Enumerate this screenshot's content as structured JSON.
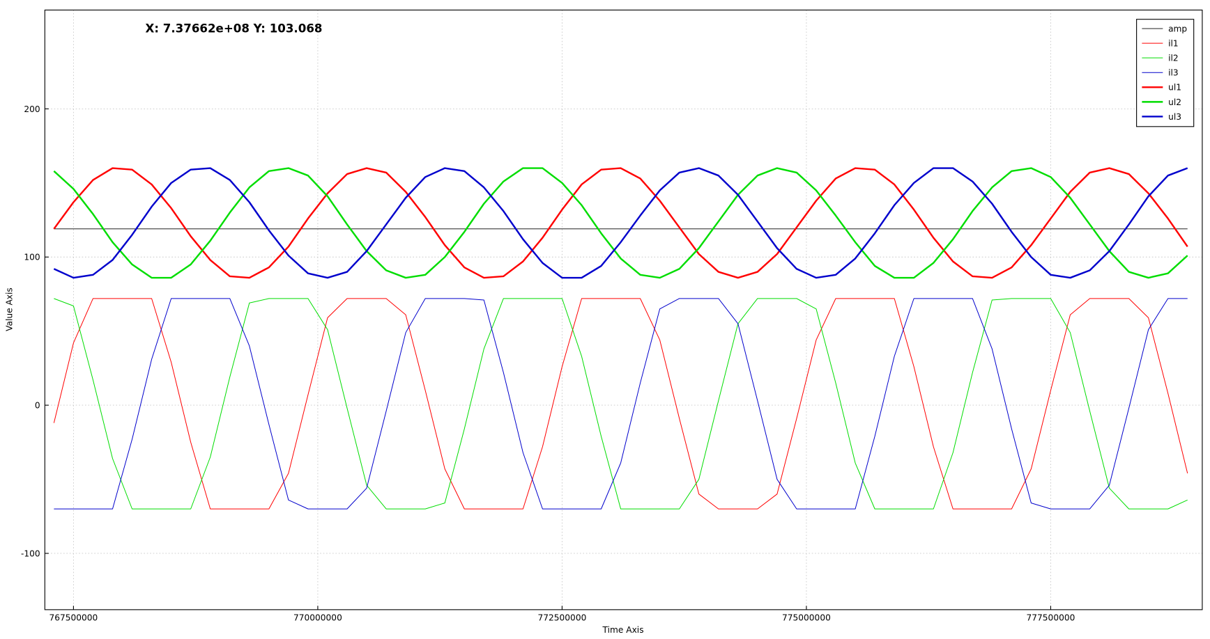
{
  "chart_data": {
    "type": "line",
    "annotation": "X: 7.37662e+08 Y: 103.068",
    "xlabel": "Time Axis",
    "ylabel": "Value Axis",
    "xlim": [
      767207000,
      779051000
    ],
    "ylim": [
      -138,
      266.7
    ],
    "xticks": [
      767500000,
      770000000,
      772500000,
      775000000,
      777500000
    ],
    "yticks": [
      -100,
      0,
      100,
      200
    ],
    "grid": true,
    "legend": "upper right",
    "x": [
      767300000,
      767500000,
      767700000,
      767900000,
      768100000,
      768300000,
      768500000,
      768700000,
      768900000,
      769100000,
      769300000,
      769500000,
      769700000,
      769900000,
      770100000,
      770300000,
      770500000,
      770700000,
      770900000,
      771100000,
      771300000,
      771500000,
      771700000,
      771900000,
      772100000,
      772300000,
      772500000,
      772700000,
      772900000,
      773100000,
      773300000,
      773500000,
      773700000,
      773900000,
      774100000,
      774300000,
      774500000,
      774700000,
      774900000,
      775100000,
      775300000,
      775500000,
      775700000,
      775900000,
      776100000,
      776300000,
      776500000,
      776700000,
      776900000,
      777100000,
      777300000,
      777500000,
      777700000,
      777900000,
      778100000,
      778300000,
      778500000,
      778700000,
      778900000
    ],
    "series": [
      {
        "name": "amp",
        "color": "#000000",
        "values": [
          119,
          119,
          119,
          119,
          119,
          119,
          119,
          119,
          119,
          119,
          119,
          119,
          119,
          119,
          119,
          119,
          119,
          119,
          119,
          119,
          119,
          119,
          119,
          119,
          119,
          119,
          119,
          119,
          119,
          119,
          119,
          119,
          119,
          119,
          119,
          119,
          119,
          119,
          119,
          119,
          119,
          119,
          119,
          119,
          119,
          119,
          119,
          119,
          119,
          119,
          119,
          119,
          119,
          119,
          119,
          119,
          119,
          119,
          119
        ]
      },
      {
        "name": "il1",
        "color": "#ff0000",
        "values": [
          -12,
          42,
          72,
          72,
          72,
          72,
          29,
          -25,
          -70,
          -70,
          -70,
          -70,
          -46,
          7,
          59,
          72,
          72,
          72,
          61,
          10,
          -43,
          -70,
          -70,
          -70,
          -70,
          -28,
          26,
          72,
          72,
          72,
          72,
          44,
          -9,
          -60,
          -70,
          -70,
          -70,
          -60,
          -9,
          44,
          72,
          72,
          72,
          72,
          26,
          -28,
          -70,
          -70,
          -70,
          -70,
          -43,
          10,
          61,
          72,
          72,
          72,
          59,
          8,
          -46
        ]
      },
      {
        "name": "il2",
        "color": "#00dd00",
        "values": [
          72,
          67,
          17,
          -36,
          -70,
          -70,
          -70,
          -70,
          -35,
          19,
          69,
          72,
          72,
          72,
          51,
          -2,
          -54,
          -70,
          -70,
          -70,
          -66,
          -16,
          38,
          72,
          72,
          72,
          72,
          33,
          -21,
          -70,
          -70,
          -70,
          -70,
          -50,
          3,
          55,
          72,
          72,
          72,
          65,
          15,
          -39,
          -70,
          -70,
          -70,
          -70,
          -32,
          22,
          71,
          72,
          72,
          72,
          49,
          -4,
          -56,
          -70,
          -70,
          -70,
          -64
        ]
      },
      {
        "name": "il3",
        "color": "#0000cc",
        "values": [
          -70,
          -70,
          -70,
          -70,
          -23,
          31,
          72,
          72,
          72,
          72,
          40,
          -13,
          -64,
          -70,
          -70,
          -70,
          -56,
          -4,
          49,
          72,
          72,
          72,
          71,
          22,
          -32,
          -70,
          -70,
          -70,
          -70,
          -39,
          15,
          65,
          72,
          72,
          72,
          55,
          3,
          -50,
          -70,
          -70,
          -70,
          -70,
          -21,
          33,
          72,
          72,
          72,
          72,
          38,
          -16,
          -66,
          -70,
          -70,
          -70,
          -54,
          -2,
          51,
          72,
          72
        ]
      },
      {
        "name": "ul1",
        "color": "#ff0000",
        "values": [
          119,
          137,
          152,
          160,
          159,
          149,
          133,
          114,
          98,
          87,
          86,
          93,
          107,
          126,
          143,
          156,
          160,
          157,
          144,
          127,
          108,
          93,
          86,
          87,
          97,
          113,
          132,
          149,
          159,
          160,
          153,
          138,
          120,
          102,
          90,
          86,
          90,
          102,
          120,
          138,
          153,
          160,
          159,
          149,
          132,
          113,
          97,
          87,
          86,
          93,
          108,
          126,
          144,
          157,
          160,
          156,
          143,
          126,
          107
        ]
      },
      {
        "name": "ul2",
        "color": "#00dd00",
        "values": [
          158,
          146,
          129,
          110,
          95,
          86,
          86,
          95,
          111,
          130,
          147,
          158,
          160,
          155,
          141,
          122,
          104,
          91,
          86,
          88,
          100,
          117,
          136,
          151,
          160,
          160,
          150,
          135,
          116,
          99,
          88,
          86,
          92,
          106,
          124,
          142,
          155,
          160,
          157,
          145,
          128,
          110,
          94,
          86,
          86,
          96,
          112,
          131,
          147,
          158,
          160,
          154,
          140,
          122,
          104,
          90,
          86,
          89,
          101
        ]
      },
      {
        "name": "ul3",
        "color": "#0000cc",
        "values": [
          92,
          86,
          88,
          98,
          115,
          134,
          150,
          159,
          160,
          152,
          137,
          118,
          101,
          89,
          86,
          90,
          104,
          122,
          140,
          154,
          160,
          158,
          147,
          131,
          112,
          96,
          86,
          86,
          94,
          110,
          128,
          145,
          157,
          160,
          155,
          142,
          124,
          106,
          92,
          86,
          88,
          99,
          116,
          135,
          150,
          160,
          160,
          151,
          136,
          117,
          100,
          88,
          86,
          91,
          104,
          122,
          141,
          155,
          160
        ]
      }
    ]
  }
}
